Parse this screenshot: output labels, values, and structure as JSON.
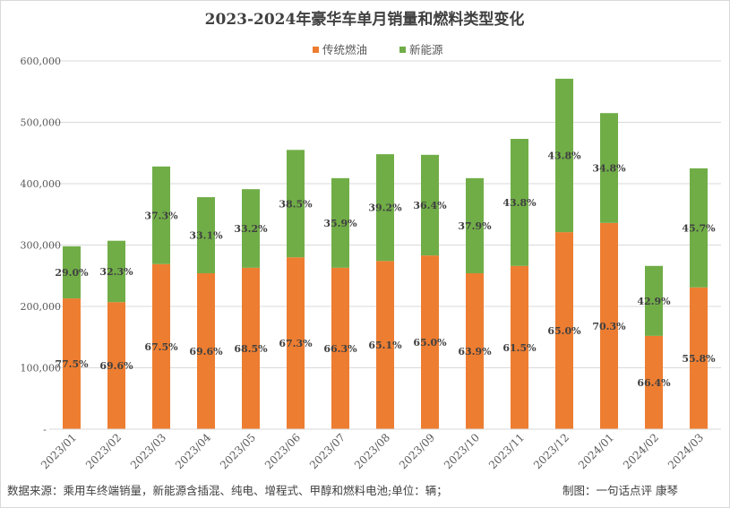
{
  "chart_data": {
    "type": "bar",
    "stacked": true,
    "title": "2023-2024年豪华车单月销量和燃料类型变化",
    "legend": {
      "position": "top",
      "entries": [
        "传统燃油",
        "新能源"
      ]
    },
    "colors": {
      "传统燃油": "#ed7d31",
      "新能源": "#70ad47"
    },
    "ylim": [
      0,
      600000
    ],
    "yticks": [
      "-",
      "100,000",
      "200,000",
      "300,000",
      "400,000",
      "500,000",
      "600,000"
    ],
    "ytick_values": [
      0,
      100000,
      200000,
      300000,
      400000,
      500000,
      600000
    ],
    "grid": true,
    "categories": [
      "2023/01",
      "2023/02",
      "2023/03",
      "2023/04",
      "2023/05",
      "2023/06",
      "2023/07",
      "2023/08",
      "2023/09",
      "2023/10",
      "2023/11",
      "2023/12",
      "2024/01",
      "2024/02",
      "2024/03"
    ],
    "series": [
      {
        "name": "传统燃油",
        "values": [
          213000,
          207000,
          269000,
          254000,
          263000,
          280000,
          263000,
          274000,
          283000,
          254000,
          266000,
          321000,
          336000,
          152000,
          231000
        ],
        "labels": [
          "77.5%",
          "69.6%",
          "67.5%",
          "69.6%",
          "68.5%",
          "67.3%",
          "66.3%",
          "65.1%",
          "65.0%",
          "63.9%",
          "61.5%",
          "65.0%",
          "70.3%",
          "66.4%",
          "55.8%"
        ]
      },
      {
        "name": "新能源",
        "values": [
          85000,
          100000,
          159000,
          124000,
          128000,
          175000,
          146000,
          174000,
          164000,
          155000,
          207000,
          250000,
          179000,
          114000,
          194000
        ],
        "labels": [
          "29.0%",
          "32.3%",
          "37.3%",
          "33.1%",
          "33.2%",
          "38.5%",
          "35.9%",
          "39.2%",
          "36.4%",
          "37.9%",
          "43.8%",
          "43.8%",
          "34.8%",
          "42.9%",
          "45.7%"
        ]
      }
    ]
  },
  "footer": {
    "source": "数据来源：乘用车终端销量，新能源含插混、纯电、增程式、甲醇和燃料电池;单位：辆；",
    "author": "制图：一句话点评 康琴"
  }
}
